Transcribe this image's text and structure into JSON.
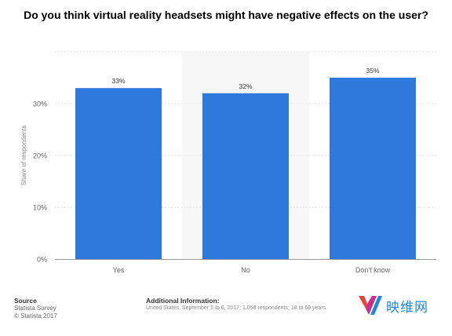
{
  "chart_data": {
    "type": "bar",
    "title": "Do you think virtual reality headsets might have negative effects on the user?",
    "categories": [
      "Yes",
      "No",
      "Don't know"
    ],
    "values": [
      33,
      32,
      35
    ],
    "value_labels": [
      "33%",
      "32%",
      "35%"
    ],
    "xlabel": "",
    "ylabel": "Share of respondents",
    "ylim": [
      0,
      40
    ],
    "yticks": [
      0,
      10,
      20,
      30
    ],
    "ytick_labels": [
      "0%",
      "10%",
      "20%",
      "30%"
    ],
    "grid": true,
    "highlighted_category": "No",
    "colors": {
      "bar": "#2f78dc",
      "highlight_band": "#f7f7f7",
      "grid": "#e3e3e3",
      "axis": "#999999",
      "tick_text": "#666666"
    }
  },
  "footer": {
    "source_heading": "Source",
    "source_lines": [
      "Statista Survey",
      "© Statista 2017"
    ],
    "info_heading": "Additional Information:",
    "info_text": "United States; September 5 to 6, 2017; 1,058 respondents; 18 to 69 years"
  },
  "watermark": {
    "logo_letters": "YV",
    "text": "映维网",
    "colors": {
      "left": "#e8433b",
      "right": "#1c8ad8"
    }
  }
}
